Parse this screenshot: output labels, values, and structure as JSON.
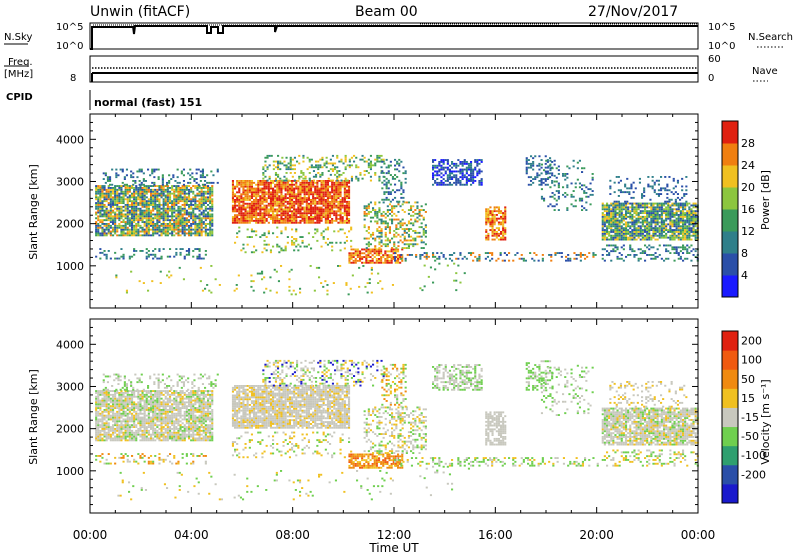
{
  "header": {
    "station": "Unwin (fitACF)",
    "beam": "Beam 00",
    "date": "27/Nov/2017"
  },
  "sky_panel": {
    "left_label": "N.Sky",
    "right_label": "N.Search",
    "left_ticks": [
      "10^5",
      "10^0"
    ],
    "right_ticks": [
      "10^5",
      "10^0"
    ]
  },
  "freq_panel": {
    "left_label_1": "Freq.",
    "left_label_2": "[MHz]",
    "left_tick": "8",
    "right_label": "Nave",
    "right_ticks": [
      "60",
      "0"
    ]
  },
  "cpid": {
    "label": "CPID",
    "value": "normal (fast) 151"
  },
  "colors": {
    "power": [
      "#1a1aff",
      "#2a4fa8",
      "#2f7f8a",
      "#3a9a5a",
      "#8cc63f",
      "#f0c020",
      "#f07f10",
      "#e02010"
    ],
    "velocity": [
      "#1a1acc",
      "#2a4fa8",
      "#2f9f6f",
      "#6fcf4f",
      "#c8c8be",
      "#f0c020",
      "#f08a10",
      "#f05a10",
      "#e02010"
    ]
  },
  "chart_data": [
    {
      "type": "heatmap",
      "quantity": "Power",
      "ylabel": "Slant Range [km]",
      "yticks": [
        1000,
        2000,
        3000,
        4000
      ],
      "ylim": [
        0,
        4600
      ],
      "colorbar_label": "Power [dB]",
      "colorbar_ticks": [
        4,
        8,
        12,
        16,
        20,
        24,
        28
      ],
      "xlim": [
        "00:00",
        "24:00"
      ]
    },
    {
      "type": "heatmap",
      "quantity": "Velocity",
      "ylabel": "Slant Range [km]",
      "yticks": [
        1000,
        2000,
        3000,
        4000
      ],
      "ylim": [
        0,
        4600
      ],
      "colorbar_label": "Velocity [m s⁻¹]",
      "colorbar_ticks": [
        200,
        100,
        50,
        15,
        -15,
        -50,
        -100,
        -200
      ],
      "xlim": [
        "00:00",
        "24:00"
      ]
    }
  ],
  "x_axis": {
    "label": "Time UT",
    "ticks": [
      "00:00",
      "04:00",
      "08:00",
      "12:00",
      "16:00",
      "20:00",
      "00:00"
    ]
  }
}
